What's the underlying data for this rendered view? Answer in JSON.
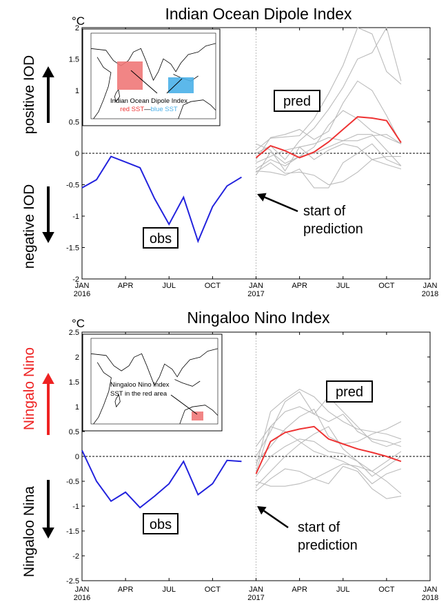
{
  "chart_data": [
    {
      "type": "line",
      "title": "Indian Ocean Dipole Index",
      "unit": "°C",
      "ylim": [
        -2,
        2
      ],
      "yticks": [
        2,
        1.5,
        1,
        0.5,
        0,
        -0.5,
        -1,
        -1.5,
        -2
      ],
      "xticks": [
        "JAN\n2016",
        "APR",
        "JUL",
        "OCT",
        "JAN\n2017",
        "APR",
        "JUL",
        "OCT",
        "JAN\n2018"
      ],
      "labels": {
        "positive": "positive IOD",
        "negative": "negative IOD",
        "pred": "pred",
        "obs": "obs",
        "start": "start of\nprediction"
      },
      "inset": {
        "line1": "Indian Ocean Dipole Index",
        "red": "red SST",
        "dash": "—",
        "blue": "blue SST"
      },
      "colors": {
        "obs": "#2222dd",
        "pred": "#ee3333",
        "member": "#bbbbbb",
        "positive": "#000000",
        "negative": "#000000"
      },
      "obs": [
        -0.55,
        -0.42,
        -0.05,
        -0.14,
        -0.23,
        -0.72,
        -1.13,
        -0.7,
        -1.4,
        -0.85,
        -0.52,
        -0.38
      ],
      "pred": [
        -0.07,
        0.12,
        0.04,
        -0.07,
        0.02,
        0.18,
        0.38,
        0.58,
        0.56,
        0.52,
        0.17
      ],
      "members": [
        [
          0.05,
          0.24,
          0.26,
          0.28,
          0.55,
          0.95,
          1.4,
          2.0,
          1.9,
          1.3,
          1.1
        ],
        [
          0.0,
          0.12,
          -0.1,
          0.2,
          0.4,
          0.7,
          1.05,
          1.5,
          1.6,
          2.0,
          1.15
        ],
        [
          -0.1,
          0.25,
          0.3,
          0.38,
          0.22,
          0.35,
          0.8,
          1.15,
          1.0,
          0.6,
          0.15
        ],
        [
          -0.35,
          0.02,
          -0.16,
          -0.05,
          0.1,
          0.45,
          0.68,
          0.55,
          0.35,
          0.25,
          0.15
        ],
        [
          -0.15,
          -0.05,
          0.05,
          0.1,
          0.15,
          0.25,
          0.2,
          0.2,
          0.28,
          0.3,
          0.15
        ],
        [
          -0.25,
          -0.1,
          -0.2,
          -0.05,
          0.0,
          0.1,
          0.2,
          0.3,
          0.3,
          0.05,
          -0.2
        ],
        [
          0.15,
          0.05,
          -0.28,
          0.1,
          -0.1,
          0.05,
          0.15,
          0.1,
          -0.1,
          -0.05,
          -0.05
        ],
        [
          -0.3,
          -0.15,
          -0.32,
          -0.3,
          -0.35,
          -0.5,
          -0.45,
          -0.3,
          -0.1,
          -0.18,
          -0.25
        ],
        [
          -0.28,
          -0.3,
          -0.35,
          -0.25,
          -0.55,
          -0.55,
          -0.15,
          0.0,
          0.15,
          -0.1,
          -0.2
        ]
      ]
    },
    {
      "type": "line",
      "title": "Ningaloo Nino Index",
      "unit": "°C",
      "ylim": [
        -2.5,
        2.5
      ],
      "yticks": [
        2.5,
        2,
        1.5,
        1,
        0.5,
        0,
        -0.5,
        -1,
        -1.5,
        -2,
        -2.5
      ],
      "xticks": [
        "JAN\n2016",
        "APR",
        "JUL",
        "OCT",
        "JAN\n2017",
        "APR",
        "JUL",
        "OCT",
        "JAN\n2018"
      ],
      "labels": {
        "positive": "Ningalo Nino",
        "negative": "Ningaloo Nina",
        "pred": "pred",
        "obs": "obs",
        "start": "start of\nprediction"
      },
      "inset": {
        "line1": "Ningaloo Nino Index",
        "line2": "SST in the red area"
      },
      "colors": {
        "obs": "#2222dd",
        "pred": "#ee3333",
        "member": "#bbbbbb",
        "positive": "#ee2222",
        "negative": "#000000"
      },
      "obs": [
        0.12,
        -0.5,
        -0.9,
        -0.72,
        -1.03,
        -0.8,
        -0.55,
        -0.1,
        -0.77,
        -0.55,
        -0.08,
        -0.1
      ],
      "pred": [
        -0.35,
        0.3,
        0.48,
        0.55,
        0.6,
        0.35,
        0.25,
        0.15,
        0.08,
        0.0,
        -0.1
      ],
      "members": [
        [
          -0.2,
          0.9,
          1.15,
          1.35,
          1.2,
          0.9,
          0.7,
          0.55,
          0.5,
          0.45,
          0.35
        ],
        [
          0.0,
          0.5,
          1.1,
          1.3,
          0.85,
          1.2,
          0.9,
          0.6,
          0.3,
          0.2,
          0.3
        ],
        [
          -0.3,
          0.6,
          0.9,
          1.0,
          0.85,
          0.7,
          0.85,
          0.5,
          0.35,
          0.3,
          0.2
        ],
        [
          -0.1,
          0.2,
          0.55,
          0.8,
          0.95,
          0.4,
          0.25,
          0.3,
          0.45,
          0.55,
          0.7
        ],
        [
          -0.4,
          0.0,
          0.2,
          0.35,
          0.3,
          0.1,
          0.05,
          -0.1,
          -0.3,
          -0.1,
          0.1
        ],
        [
          -0.6,
          -0.3,
          0.0,
          0.25,
          0.45,
          0.6,
          0.15,
          -0.1,
          -0.4,
          -0.2,
          0.0
        ],
        [
          -0.5,
          -0.6,
          -0.6,
          -0.55,
          -0.45,
          -0.3,
          -0.15,
          -0.2,
          -0.3,
          -0.5,
          -0.75
        ],
        [
          -0.7,
          -0.45,
          -0.25,
          -0.3,
          -0.45,
          -0.55,
          -0.2,
          -0.3,
          -0.65,
          -0.85,
          -0.8
        ],
        [
          0.2,
          0.6,
          0.5,
          0.3,
          0.1,
          0.0,
          -0.1,
          -0.25,
          -0.55,
          -0.35,
          -0.25
        ]
      ]
    }
  ]
}
